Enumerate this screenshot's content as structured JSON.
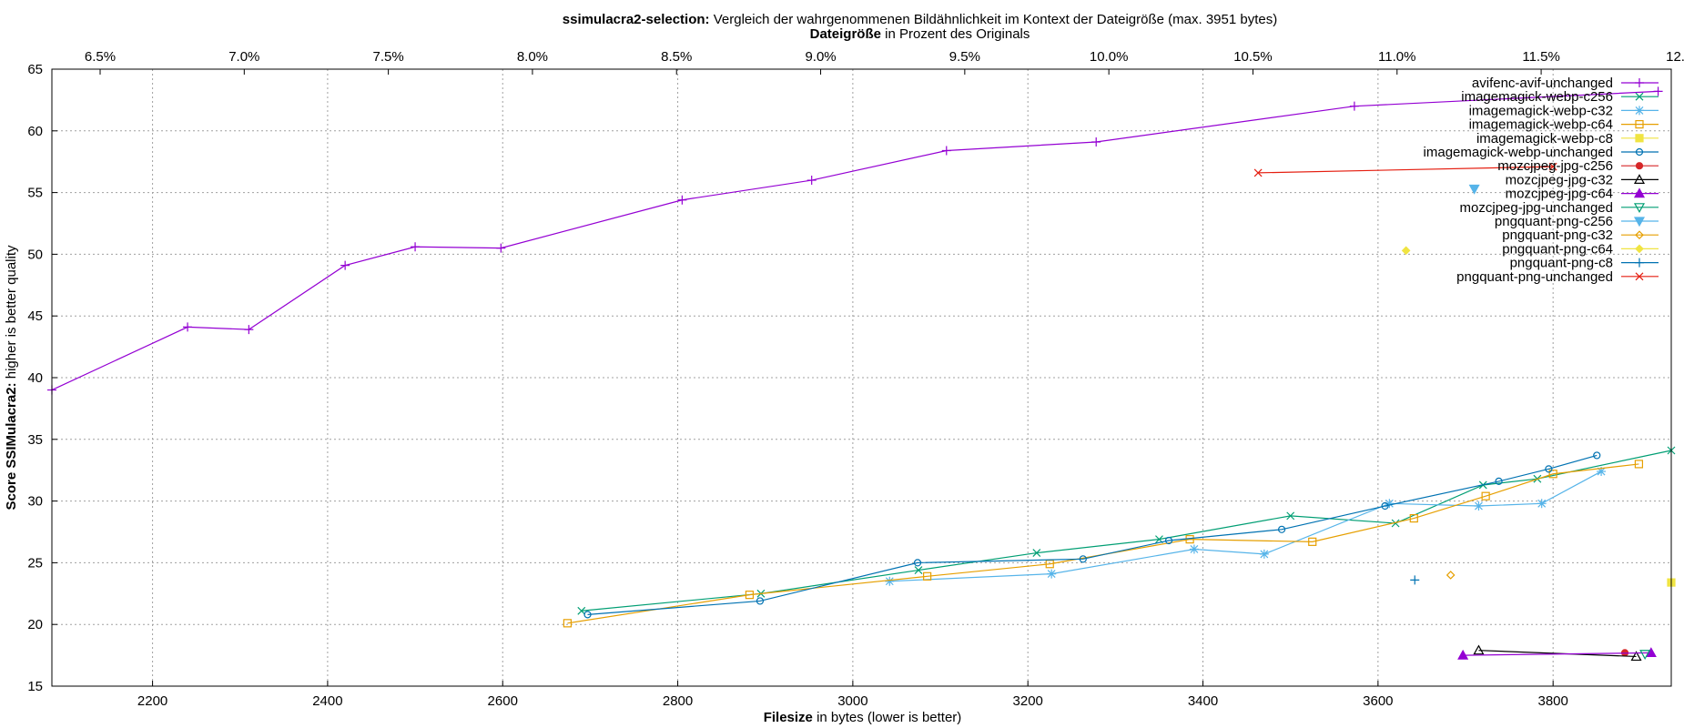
{
  "chart_data": {
    "type": "line",
    "title": {
      "bold": "ssimulacra2-selection:",
      "rest": " Vergleich der wahrgenommenen Bildähnlichkeit im Kontext der Dateigröße (max. 3951 bytes)"
    },
    "x2label": {
      "bold": "Dateigröße",
      "rest": " in Prozent des Originals"
    },
    "xlabel": {
      "bold": "Filesize",
      "rest": " in bytes (lower is better)"
    },
    "ylabel": {
      "bold": "Score SSIMulacra2:",
      "rest": " higher is better quality"
    },
    "xlim": [
      2085,
      3935
    ],
    "ylim": [
      15,
      65
    ],
    "x_ticks": [
      2200,
      2400,
      2600,
      2800,
      3000,
      3200,
      3400,
      3600,
      3800
    ],
    "y_ticks": [
      15,
      20,
      25,
      30,
      35,
      40,
      45,
      50,
      55,
      60,
      65
    ],
    "x2_ticks": [
      "6.5%",
      "7.0%",
      "7.5%",
      "8.0%",
      "8.5%",
      "9.0%",
      "9.5%",
      "10.0%",
      "10.5%",
      "11.0%",
      "11.5%",
      "12.0%"
    ],
    "x2_tick_values": [
      6.5,
      7.0,
      7.5,
      8.0,
      8.5,
      9.0,
      9.5,
      10.0,
      10.5,
      11.0,
      11.5,
      12.0
    ],
    "x2_basis": 32925,
    "grid": true,
    "legend_position": "top-right",
    "series": [
      {
        "name": "avifenc-avif-unchanged",
        "color": "#9400d3",
        "marker": "plus",
        "x": [
          2085,
          2240,
          2310,
          2420,
          2500,
          2598,
          2805,
          2953,
          3107,
          3278,
          3573,
          3920
        ],
        "y": [
          39.0,
          44.1,
          43.9,
          49.1,
          50.6,
          50.5,
          54.4,
          56.0,
          58.4,
          59.1,
          62.0,
          63.2
        ]
      },
      {
        "name": "imagemagick-webp-c256",
        "color": "#009e73",
        "marker": "x",
        "x": [
          2690,
          2895,
          3075,
          3210,
          3350,
          3500,
          3620,
          3720,
          3782,
          3935
        ],
        "y": [
          21.1,
          22.5,
          24.4,
          25.8,
          26.9,
          28.8,
          28.2,
          31.3,
          31.8,
          34.1
        ]
      },
      {
        "name": "imagemagick-webp-c32",
        "color": "#56b4e9",
        "marker": "star",
        "x": [
          3042,
          3227,
          3390,
          3470,
          3613,
          3715,
          3787,
          3855
        ],
        "y": [
          23.5,
          24.1,
          26.1,
          25.7,
          29.8,
          29.6,
          29.8,
          32.4
        ]
      },
      {
        "name": "imagemagick-webp-c64",
        "color": "#e69f00",
        "marker": "box",
        "x": [
          2674,
          2882,
          3085,
          3225,
          3385,
          3525,
          3641,
          3723,
          3800,
          3898
        ],
        "y": [
          20.1,
          22.4,
          23.9,
          24.9,
          26.9,
          26.7,
          28.6,
          30.4,
          32.2,
          33.0
        ]
      },
      {
        "name": "imagemagick-webp-c8",
        "color": "#f0e442",
        "marker": "filled-box",
        "x": [
          3935
        ],
        "y": [
          23.4
        ]
      },
      {
        "name": "imagemagick-webp-unchanged",
        "color": "#0072b2",
        "marker": "circle",
        "x": [
          2697,
          2894,
          3074,
          3263,
          3361,
          3490,
          3608,
          3738,
          3795,
          3850
        ],
        "y": [
          20.8,
          21.9,
          25.0,
          25.3,
          26.8,
          27.7,
          29.6,
          31.6,
          32.6,
          33.7
        ]
      },
      {
        "name": "mozcjpeg-jpg-c256",
        "color": "#d62728",
        "marker": "filled-circle",
        "x": [
          3882
        ],
        "y": [
          17.7
        ]
      },
      {
        "name": "mozcjpeg-jpg-c32",
        "color": "#000000",
        "marker": "triangle",
        "x": [
          3715,
          3895
        ],
        "y": [
          17.9,
          17.4
        ]
      },
      {
        "name": "mozcjpeg-jpg-c64",
        "color": "#9400d3",
        "marker": "filled-triangle",
        "x": [
          3697,
          3912
        ],
        "y": [
          17.5,
          17.7
        ]
      },
      {
        "name": "mozcjpeg-jpg-unchanged",
        "color": "#009e73",
        "marker": "nabla",
        "x": [
          3905
        ],
        "y": [
          17.6
        ]
      },
      {
        "name": "pngquant-png-c256",
        "color": "#56b4e9",
        "marker": "filled-nabla",
        "x": [
          3710
        ],
        "y": [
          55.3
        ]
      },
      {
        "name": "pngquant-png-c32",
        "color": "#e69f00",
        "marker": "diamond",
        "x": [
          3683
        ],
        "y": [
          24.0
        ]
      },
      {
        "name": "pngquant-png-c64",
        "color": "#f0e442",
        "marker": "filled-diamond",
        "x": [
          3632
        ],
        "y": [
          50.3
        ]
      },
      {
        "name": "pngquant-png-c8",
        "color": "#0072b2",
        "marker": "plus",
        "x": [
          3642
        ],
        "y": [
          23.6
        ]
      },
      {
        "name": "pngquant-png-unchanged",
        "color": "#e51e10",
        "marker": "x",
        "x": [
          3463,
          3800
        ],
        "y": [
          56.6,
          57.1
        ]
      }
    ]
  }
}
